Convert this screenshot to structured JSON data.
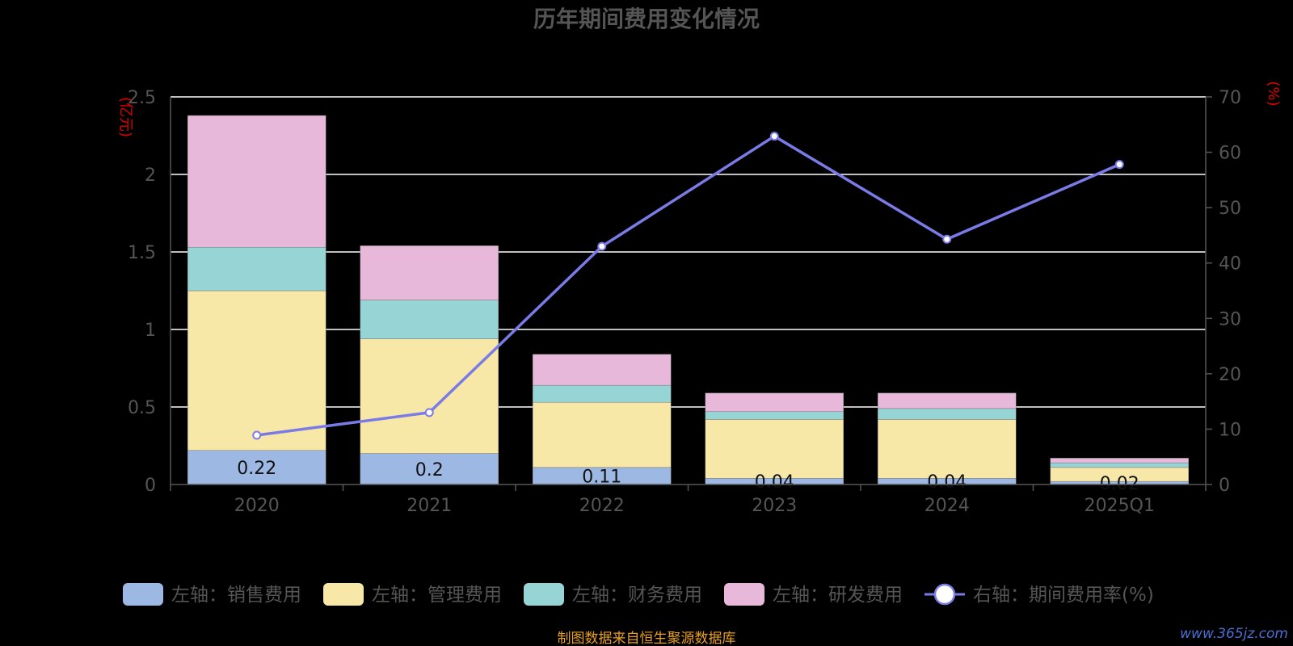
{
  "title": "历年期间费用变化情况",
  "left_unit": "(亿元)",
  "right_unit": "(%)",
  "source": "制图数据来自恒生聚源数据库",
  "watermark": "www.365jz.com",
  "colors": {
    "sales": "#9db8e3",
    "admin": "#f8e8a8",
    "finance": "#96d4d6",
    "rd": "#e8b8da",
    "rate": "#7b7be8"
  },
  "chart_data": {
    "type": "bar",
    "categories": [
      "2020",
      "2021",
      "2022",
      "2023",
      "2024",
      "2025Q1"
    ],
    "y_left": {
      "ticks": [
        "0",
        "0.5",
        "1",
        "1.5",
        "2",
        "2.5"
      ],
      "range": [
        0,
        2.5
      ]
    },
    "y_right": {
      "ticks": [
        "0",
        "10",
        "20",
        "30",
        "40",
        "50",
        "60",
        "70"
      ],
      "range": [
        0,
        70
      ]
    },
    "series": [
      {
        "name": "左轴：销售费用",
        "key": "sales",
        "axis": "left",
        "values": [
          0.22,
          0.2,
          0.11,
          0.04,
          0.04,
          0.02
        ],
        "labels": [
          "0.22",
          "0.2",
          "0.11",
          "0.04",
          "0.04",
          "0.02"
        ]
      },
      {
        "name": "左轴：管理费用",
        "key": "admin",
        "axis": "left",
        "values": [
          1.03,
          0.74,
          0.42,
          0.38,
          0.38,
          0.09
        ]
      },
      {
        "name": "左轴：财务费用",
        "key": "finance",
        "axis": "left",
        "values": [
          0.28,
          0.25,
          0.11,
          0.05,
          0.07,
          0.03
        ]
      },
      {
        "name": "左轴：研发费用",
        "key": "rd",
        "axis": "left",
        "values": [
          0.85,
          0.35,
          0.2,
          0.12,
          0.1,
          0.03
        ]
      },
      {
        "name": "右轴：期间费用率(%)",
        "key": "rate",
        "axis": "right",
        "type": "line",
        "values": [
          8.9,
          13.0,
          43.0,
          62.9,
          44.3,
          57.8
        ]
      }
    ],
    "grid": true,
    "legend_position": "bottom"
  }
}
